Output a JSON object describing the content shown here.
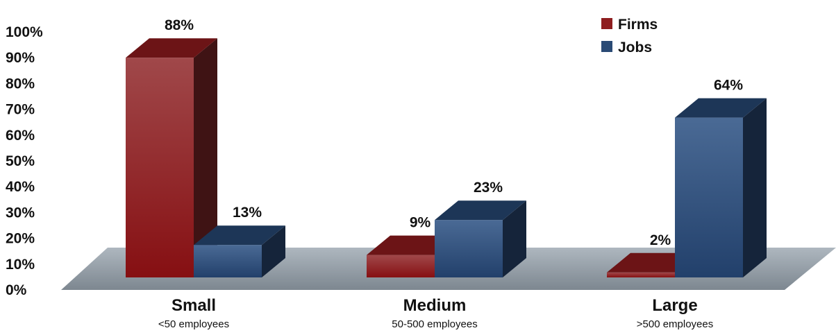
{
  "chart_data": {
    "type": "bar",
    "categories": [
      "Small",
      "Medium",
      "Large"
    ],
    "category_sublabels": [
      "<50 employees",
      "50-500 employees",
      ">500 employees"
    ],
    "series": [
      {
        "name": "Firms",
        "values": [
          88,
          9,
          2
        ],
        "labels": [
          "88%",
          "9%",
          "2%"
        ],
        "color": "#8e1d1f"
      },
      {
        "name": "Jobs",
        "values": [
          13,
          23,
          64
        ],
        "labels": [
          "13%",
          "23%",
          "64%"
        ],
        "color": "#2a4a75"
      }
    ],
    "y_ticks": [
      "0%",
      "10%",
      "20%",
      "30%",
      "40%",
      "50%",
      "60%",
      "70%",
      "80%",
      "90%",
      "100%"
    ],
    "ylim": [
      0,
      100
    ],
    "legend_position": "top-right",
    "grid": false,
    "style": "3d"
  }
}
